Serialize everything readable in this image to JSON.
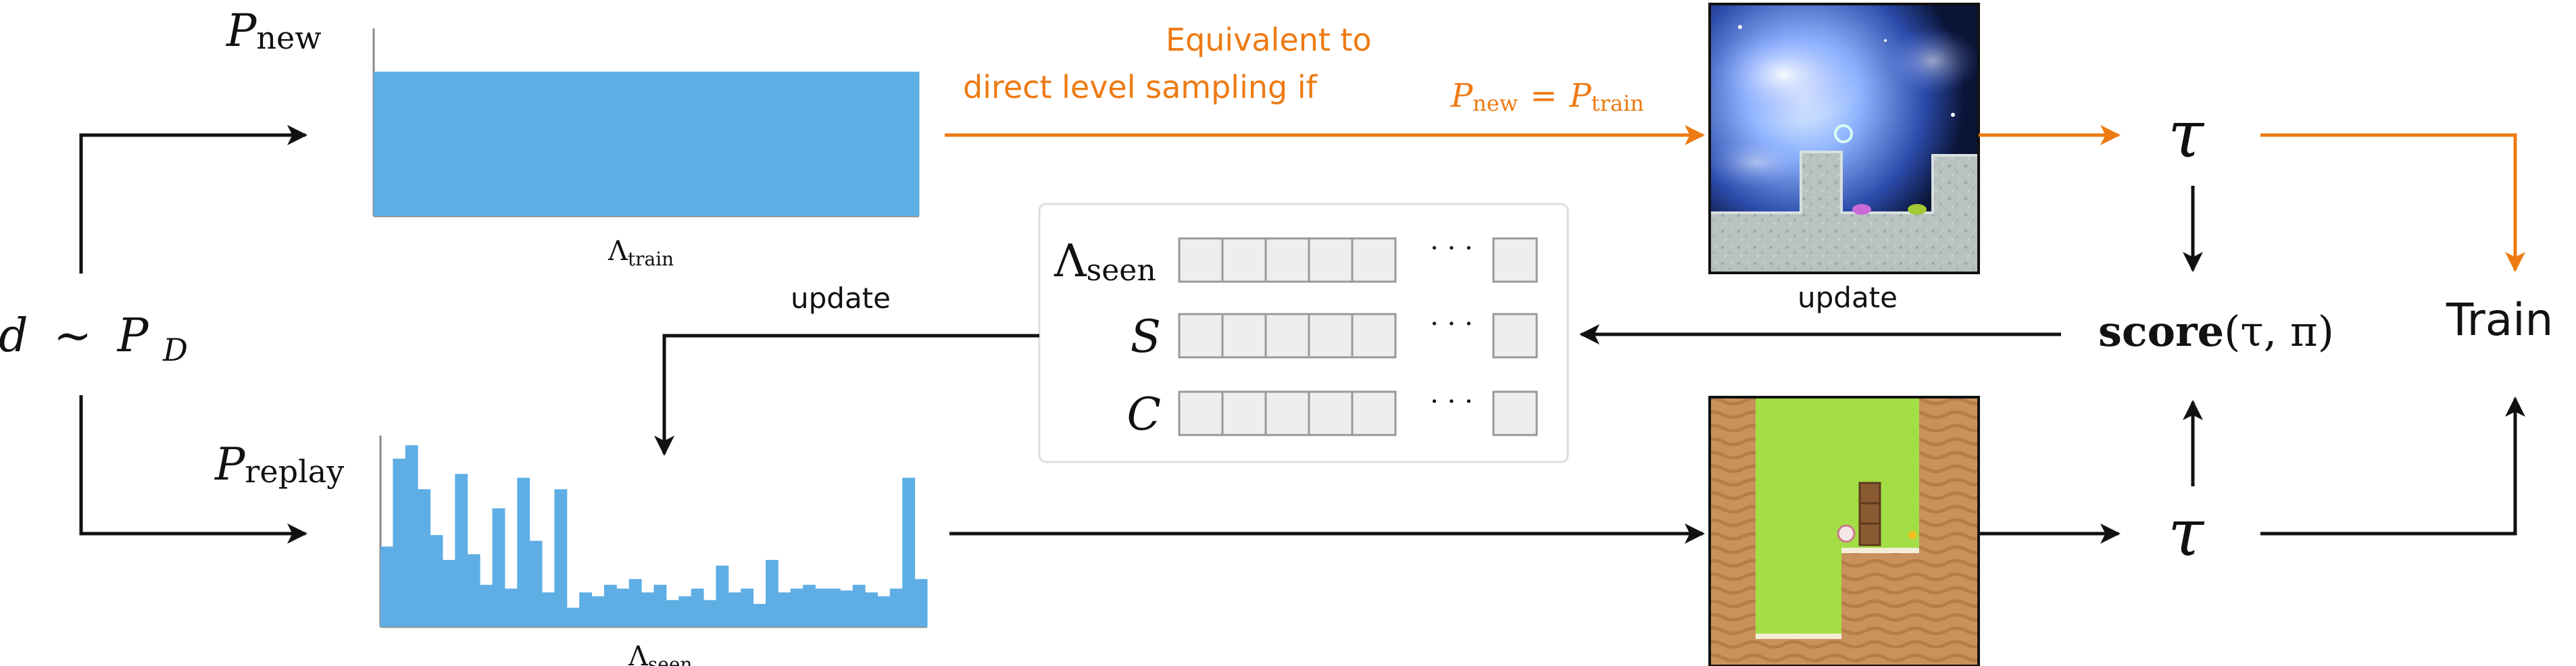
{
  "labels": {
    "d_dist": {
      "d": "d",
      "sim": "∼",
      "p": "P",
      "sub": "D"
    },
    "p_new": {
      "p": "P",
      "sub": "new"
    },
    "lambda_train": {
      "l": "Λ",
      "sub": "train"
    },
    "p_replay": {
      "p": "P",
      "sub": "replay"
    },
    "lambda_seen": {
      "l": "Λ",
      "sub": "seen"
    },
    "equiv_line1": "Equivalent to",
    "equiv_line2": "direct level sampling if",
    "equiv_eq": {
      "p1": "P",
      "sub1": "new",
      "eq": "=",
      "p2": "P",
      "sub2": "train"
    },
    "update_top": "update",
    "update_left": "update",
    "tau_top": "τ",
    "tau_bottom": "τ",
    "score": {
      "bold": "score",
      "args": "(τ, π)"
    },
    "train": "Train",
    "buffer_rows": [
      {
        "l": "Λ",
        "sub": "seen"
      },
      {
        "l": "S",
        "sub": ""
      },
      {
        "l": "C",
        "sub": ""
      }
    ],
    "ellipsis": "· · ·"
  },
  "colors": {
    "orange": "#ee7a12",
    "bar_blue": "#5eaee5",
    "arrow_black": "#111111",
    "cell_fill": "#eeeeee",
    "cell_stroke": "#999999"
  },
  "chart_data": [
    {
      "type": "bar",
      "name": "p_new_distribution",
      "values": [
        1.0
      ],
      "xlabel": "Λtrain",
      "ylim": [
        0,
        1.3
      ]
    },
    {
      "type": "bar",
      "name": "p_replay_distribution",
      "values": [
        0.42,
        0.88,
        0.95,
        0.72,
        0.48,
        0.35,
        0.8,
        0.38,
        0.22,
        0.62,
        0.2,
        0.78,
        0.45,
        0.18,
        0.72,
        0.1,
        0.18,
        0.16,
        0.22,
        0.2,
        0.25,
        0.18,
        0.22,
        0.14,
        0.16,
        0.2,
        0.14,
        0.32,
        0.18,
        0.2,
        0.12,
        0.35,
        0.18,
        0.2,
        0.22,
        0.2,
        0.2,
        0.19,
        0.22,
        0.18,
        0.16,
        0.2,
        0.78,
        0.25
      ],
      "xlabel": "Λseen",
      "ylim": [
        0,
        1.0
      ]
    }
  ]
}
